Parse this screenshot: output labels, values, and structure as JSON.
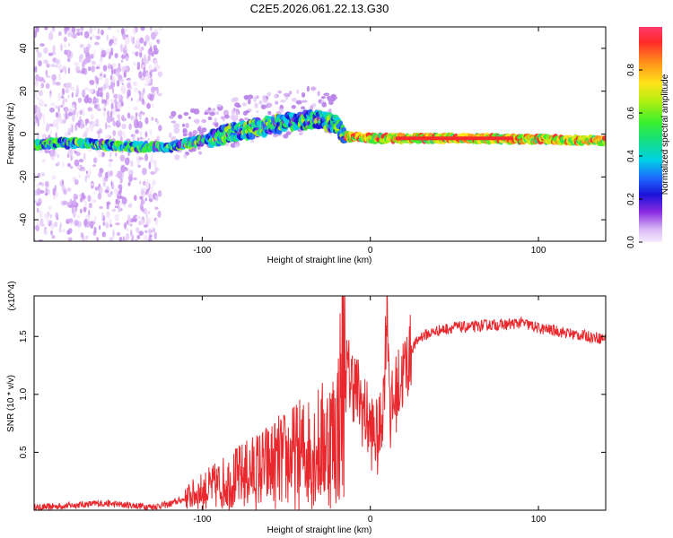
{
  "chart_data": [
    {
      "type": "heatmap",
      "title": "C2E5.2026.061.22.13.G30",
      "xlabel": "Height of straight line (km)",
      "ylabel": "Frequency (Hz)",
      "xlim": [
        -200,
        140
      ],
      "ylim": [
        -50,
        50
      ],
      "xticks": [
        -100,
        0,
        100
      ],
      "yticks": [
        -40,
        -20,
        0,
        20,
        40
      ],
      "colorbar": {
        "label": "Normalized spectral amplitude",
        "range": [
          0.0,
          1.0
        ],
        "ticks": [
          "0.0",
          "0.2",
          "0.4",
          "0.6",
          "0.8"
        ]
      },
      "ridge": [
        {
          "x": -200,
          "y": -5
        },
        {
          "x": -180,
          "y": -4
        },
        {
          "x": -160,
          "y": -5
        },
        {
          "x": -140,
          "y": -6
        },
        {
          "x": -120,
          "y": -6
        },
        {
          "x": -100,
          "y": -3
        },
        {
          "x": -80,
          "y": 1
        },
        {
          "x": -60,
          "y": 4
        },
        {
          "x": -45,
          "y": 6
        },
        {
          "x": -30,
          "y": 7
        },
        {
          "x": -20,
          "y": 4
        },
        {
          "x": -15,
          "y": -1
        },
        {
          "x": 0,
          "y": -2
        },
        {
          "x": 20,
          "y": -2
        },
        {
          "x": 60,
          "y": -2
        },
        {
          "x": 100,
          "y": -2.5
        },
        {
          "x": 140,
          "y": -3
        }
      ]
    },
    {
      "type": "line",
      "title": "",
      "xlabel": "Height of straight line (km)",
      "ylabel": "SNR (10 * v/v)",
      "yscale_label": "(x10^4)",
      "xlim": [
        -200,
        140
      ],
      "ylim": [
        0,
        1.85
      ],
      "xticks": [
        -100,
        0,
        100
      ],
      "yticks": [
        "0.5",
        "1.0",
        "1.5"
      ],
      "series": [
        {
          "name": "SNR",
          "color": "#e8282d",
          "x": [
            -200,
            -180,
            -160,
            -140,
            -130,
            -120,
            -110,
            -100,
            -90,
            -80,
            -70,
            -60,
            -50,
            -40,
            -30,
            -20,
            -15,
            -10,
            -5,
            0,
            5,
            8,
            10,
            12,
            15,
            20,
            25,
            30,
            40,
            50,
            60,
            70,
            80,
            90,
            100,
            110,
            120,
            130,
            140
          ],
          "y": [
            0.02,
            0.04,
            0.06,
            0.04,
            0.03,
            0.05,
            0.1,
            0.15,
            0.2,
            0.25,
            0.3,
            0.35,
            0.4,
            0.45,
            0.5,
            0.6,
            1.2,
            1.1,
            0.9,
            0.7,
            0.6,
            1.0,
            1.85,
            0.8,
            1.0,
            1.2,
            1.4,
            1.5,
            1.55,
            1.58,
            1.58,
            1.6,
            1.6,
            1.62,
            1.57,
            1.55,
            1.52,
            1.5,
            1.48
          ]
        }
      ]
    }
  ]
}
